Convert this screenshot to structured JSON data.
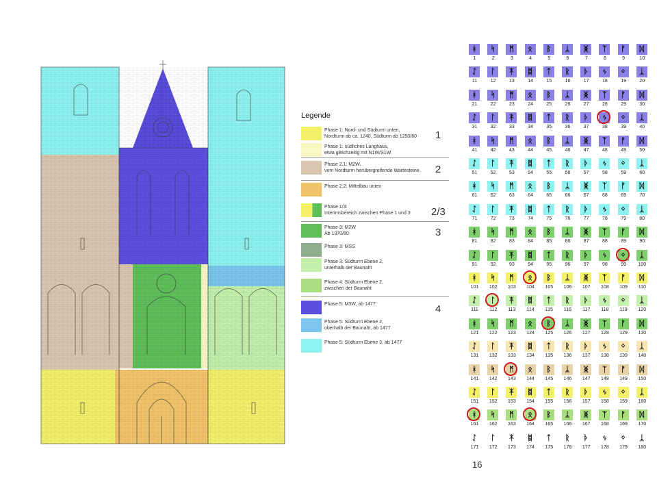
{
  "legend": {
    "title": "Legende",
    "items": [
      {
        "color": "#f3f06a",
        "text": "Phase 1: Nord- und Südturm unten,\nNordturm ab ca. 1240, Südturm ab 1250/60",
        "group": "1"
      },
      {
        "color": "#fbf7c4",
        "text": "Phase 1: südliches Langhaus,\netwa gleichzeitig mit N1W/S1W",
        "group": ""
      },
      {
        "color": "#d9c6b0",
        "text": "Phase 2.1: M2W,\nvom Nordturm herübergreifende Wartesteine",
        "group": "2"
      },
      {
        "color": "#f2c46a",
        "text": "Phase 2.2: Mittelbau unten",
        "group": ""
      },
      {
        "color": "split",
        "text": "Phase 1/3:\nInterimsbereich zwischen Phase 1 und 3",
        "group": "2/3"
      },
      {
        "color": "#5fbe5a",
        "text": "Phase 3: M2W\nAb 1370/80",
        "group": "3"
      },
      {
        "color": "#8fae8e",
        "text": "Phase 3: MSS",
        "group": ""
      },
      {
        "color": "#c4efac",
        "text": "Phase 3: Südturm Ebene 2,\nunterhalb der Baunaht",
        "group": ""
      },
      {
        "color": "#a8dd80",
        "text": "Phase 4: Südturm Ebene 2,\nzwischen der Baunaht",
        "group": ""
      },
      {
        "color": "#5a4fe0",
        "text": "Phase 5: M3W, ab 1477",
        "group": "4"
      },
      {
        "color": "#7cc6ee",
        "text": "Phase 5: Südturm Ebene 2,\noberhalb der Baunaht, ab 1477",
        "group": ""
      },
      {
        "color": "#8ef3f0",
        "text": "Phase 5: Südturm Ebene 3, ab 1477",
        "group": ""
      }
    ]
  },
  "slide_page_number": "16",
  "mason_marks": {
    "highlighted": [
      "38",
      "99",
      "104",
      "112",
      "125",
      "143",
      "161",
      "164"
    ],
    "rows": [
      {
        "color": "#8a80e6",
        "numbers": [
          "1",
          "2",
          "3",
          "4",
          "5",
          "6",
          "7",
          "8",
          "9",
          "10"
        ]
      },
      {
        "color": "#8a80e6",
        "numbers": [
          "11",
          "12",
          "13",
          "14",
          "15",
          "16",
          "17",
          "18",
          "19",
          "20"
        ]
      },
      {
        "color": "#8a80e6",
        "numbers": [
          "21",
          "22",
          "23",
          "24",
          "25",
          "26",
          "27",
          "28",
          "29",
          "30"
        ]
      },
      {
        "color": "#8a80e6",
        "numbers": [
          "31",
          "32",
          "33",
          "34",
          "35",
          "36",
          "37",
          "38",
          "39",
          "40"
        ]
      },
      {
        "color": "#8a80e6",
        "numbers": [
          "41",
          "42",
          "43",
          "44",
          "45",
          "46",
          "47",
          "48",
          "49",
          "50"
        ]
      },
      {
        "color": "#8ef3f0",
        "numbers": [
          "51",
          "52",
          "53",
          "54",
          "55",
          "56",
          "57",
          "58",
          "59",
          "60"
        ]
      },
      {
        "color": "#8ef3f0",
        "numbers": [
          "61",
          "62",
          "63",
          "64",
          "65",
          "66",
          "67",
          "68",
          "69",
          "70"
        ]
      },
      {
        "color": "#8ef3f0",
        "numbers": [
          "71",
          "72",
          "73",
          "74",
          "75",
          "76",
          "77",
          "78",
          "79",
          "80"
        ]
      },
      {
        "color": "#7fd06c",
        "numbers": [
          "81",
          "82",
          "83",
          "84",
          "85",
          "86",
          "87",
          "88",
          "89",
          "90"
        ]
      },
      {
        "color": "#7fd06c",
        "numbers": [
          "91",
          "92",
          "93",
          "94",
          "95",
          "96",
          "97",
          "98",
          "99",
          "100"
        ]
      },
      {
        "color": "#f3f06a",
        "numbers": [
          "101",
          "102",
          "103",
          "104",
          "105",
          "106",
          "107",
          "108",
          "109",
          "110"
        ]
      },
      {
        "color": "#c4efac",
        "numbers": [
          "111",
          "112",
          "113",
          "114",
          "115",
          "116",
          "117",
          "118",
          "119",
          "120"
        ]
      },
      {
        "color": "#7fd06c",
        "numbers": [
          "121",
          "122",
          "123",
          "124",
          "125",
          "126",
          "127",
          "128",
          "129",
          "130"
        ]
      },
      {
        "color": "#f7e6b0",
        "numbers": [
          "131",
          "132",
          "133",
          "134",
          "135",
          "136",
          "137",
          "138",
          "139",
          "140"
        ]
      },
      {
        "color": "#e8d2a8",
        "numbers": [
          "141",
          "142",
          "143",
          "144",
          "145",
          "146",
          "147",
          "148",
          "149",
          "150"
        ]
      },
      {
        "color": "#f3f06a",
        "numbers": [
          "151",
          "152",
          "153",
          "154",
          "155",
          "156",
          "157",
          "158",
          "159",
          "160"
        ]
      },
      {
        "color": "#a8dd80",
        "numbers": [
          "161",
          "162",
          "163",
          "164",
          "165",
          "166",
          "167",
          "168",
          "169",
          "170"
        ]
      },
      {
        "color": "#ffffff",
        "numbers": [
          "171",
          "172",
          "173",
          "174",
          "175",
          "176",
          "177",
          "178",
          "179",
          "180"
        ]
      }
    ]
  }
}
